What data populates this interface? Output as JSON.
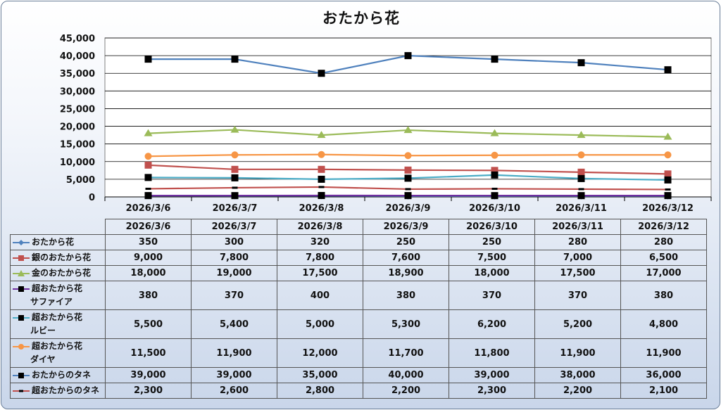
{
  "chart_data": {
    "type": "line",
    "title": "おたから花",
    "categories": [
      "2026/3/6",
      "2026/3/7",
      "2026/3/8",
      "2026/3/9",
      "2026/3/10",
      "2026/3/11",
      "2026/3/12"
    ],
    "ylim": [
      0,
      45000
    ],
    "yticks": [
      "0",
      "5,000",
      "10,000",
      "15,000",
      "20,000",
      "25,000",
      "30,000",
      "35,000",
      "40,000",
      "45,000"
    ],
    "grid": true,
    "legend": "data-table",
    "series": [
      {
        "name": "おたから花",
        "name_lines": [
          "おたから花"
        ],
        "color": "#4f81bd",
        "marker": "diamond",
        "values": [
          350,
          300,
          320,
          250,
          250,
          280,
          280
        ],
        "labels": [
          "350",
          "300",
          "320",
          "250",
          "250",
          "280",
          "280"
        ]
      },
      {
        "name": "銀のおたから花",
        "name_lines": [
          "銀のおたから花"
        ],
        "color": "#c0504d",
        "marker": "square",
        "values": [
          9000,
          7800,
          7800,
          7600,
          7500,
          7000,
          6500
        ],
        "labels": [
          "9,000",
          "7,800",
          "7,800",
          "7,600",
          "7,500",
          "7,000",
          "6,500"
        ]
      },
      {
        "name": "金のおたから花",
        "name_lines": [
          "金のおたから花"
        ],
        "color": "#9bbb59",
        "marker": "triangle",
        "values": [
          18000,
          19000,
          17500,
          18900,
          18000,
          17500,
          17000
        ],
        "labels": [
          "18,000",
          "19,000",
          "17,500",
          "18,900",
          "18,000",
          "17,500",
          "17,000"
        ]
      },
      {
        "name": "超おたから花 サファイア",
        "name_lines": [
          "超おたから花",
          "サファイア"
        ],
        "color": "#7030a0",
        "marker": "bsquare",
        "values": [
          380,
          370,
          400,
          380,
          370,
          370,
          380
        ],
        "labels": [
          "380",
          "370",
          "400",
          "380",
          "370",
          "370",
          "380"
        ]
      },
      {
        "name": "超おたから花 ルビー",
        "name_lines": [
          "超おたから花",
          "ルビー"
        ],
        "color": "#4bacc6",
        "marker": "bsquare",
        "values": [
          5500,
          5400,
          5000,
          5300,
          6200,
          5200,
          4800
        ],
        "labels": [
          "5,500",
          "5,400",
          "5,000",
          "5,300",
          "6,200",
          "5,200",
          "4,800"
        ]
      },
      {
        "name": "超おたから花 ダイヤ",
        "name_lines": [
          "超おたから花",
          "ダイヤ"
        ],
        "color": "#f79646",
        "marker": "circle",
        "values": [
          11500,
          11900,
          12000,
          11700,
          11800,
          11900,
          11900
        ],
        "labels": [
          "11,500",
          "11,900",
          "12,000",
          "11,700",
          "11,800",
          "11,900",
          "11,900"
        ]
      },
      {
        "name": "おたからのタネ",
        "name_lines": [
          "おたからのタネ"
        ],
        "color": "#4f81bd",
        "marker": "bsquare",
        "values": [
          39000,
          39000,
          35000,
          40000,
          39000,
          38000,
          36000
        ],
        "labels": [
          "39,000",
          "39,000",
          "35,000",
          "40,000",
          "39,000",
          "38,000",
          "36,000"
        ]
      },
      {
        "name": "超おたからのタネ",
        "name_lines": [
          "超おたからのタネ"
        ],
        "color": "#c0504d",
        "marker": "dash",
        "values": [
          2300,
          2600,
          2800,
          2200,
          2300,
          2200,
          2100
        ],
        "labels": [
          "2,300",
          "2,600",
          "2,800",
          "2,200",
          "2,300",
          "2,200",
          "2,100"
        ]
      }
    ]
  }
}
